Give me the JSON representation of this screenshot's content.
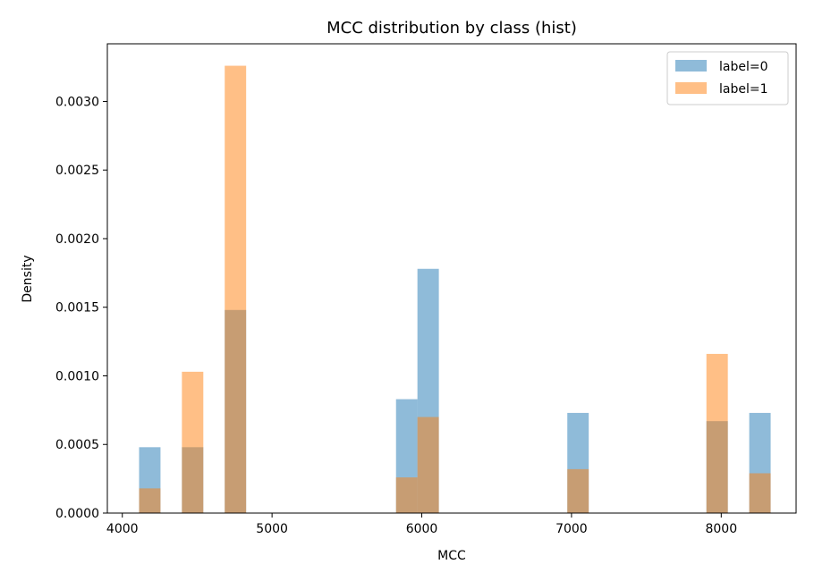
{
  "chart_data": {
    "type": "bar",
    "subtype": "overlapping-histogram",
    "title": "MCC distribution by class (hist)",
    "xlabel": "MCC",
    "ylabel": "Density",
    "xlim": [
      3900,
      8500
    ],
    "ylim": [
      0,
      0.00342
    ],
    "xticks": [
      4000,
      5000,
      6000,
      7000,
      8000
    ],
    "yticks": [
      0,
      0.0005,
      0.001,
      0.0015,
      0.002,
      0.0025,
      0.003
    ],
    "ytick_labels": [
      "0.0000",
      "0.0005",
      "0.0010",
      "0.0015",
      "0.0020",
      "0.0025",
      "0.0030"
    ],
    "grid": false,
    "legend_position": "top-right",
    "bin_width": 143,
    "bin_starts": [
      4112,
      4398,
      4684,
      5828,
      5971,
      6972,
      7901,
      8187
    ],
    "series": [
      {
        "name": "label=0",
        "color": "#1f77b4",
        "values": [
          0.00048,
          0.00048,
          0.00148,
          0.00083,
          0.00178,
          0.00073,
          0.00067,
          0.00073
        ]
      },
      {
        "name": "label=1",
        "color": "#ff7f0e",
        "values": [
          0.00018,
          0.00103,
          0.00326,
          0.00026,
          0.0007,
          0.00032,
          0.00116,
          0.00029
        ]
      }
    ]
  }
}
